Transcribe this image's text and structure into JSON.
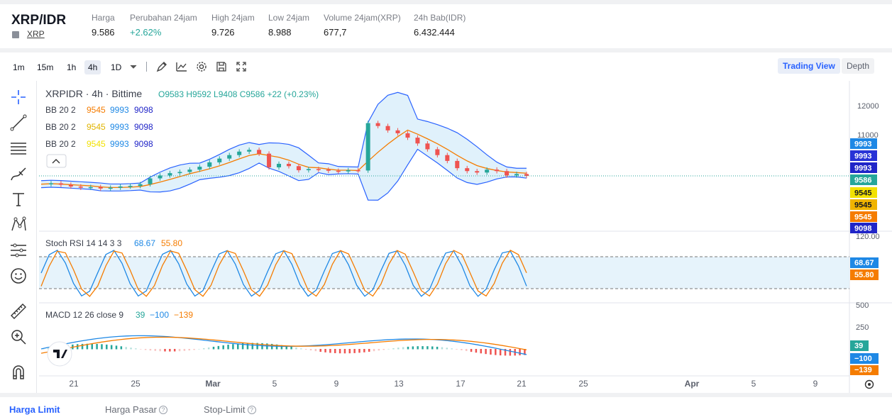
{
  "ticker": {
    "pair": "XRP/IDR",
    "coin_link": "XRP",
    "stats": [
      {
        "label": "Harga",
        "value": "9.586",
        "color": "dark"
      },
      {
        "label": "Perubahan 24jam",
        "value": "+2.62%",
        "color": "green"
      },
      {
        "label": "High 24jam",
        "value": "9.726",
        "color": "dark"
      },
      {
        "label": "Low 24jam",
        "value": "8.988",
        "color": "dark"
      },
      {
        "label": "Volume 24jam(XRP)",
        "value": "677,7",
        "color": "dark"
      },
      {
        "label": "24h Bab(IDR)",
        "value": "6.432.444",
        "color": "dark"
      }
    ]
  },
  "toolbar": {
    "timeframes": [
      "1m",
      "15m",
      "1h",
      "4h",
      "1D"
    ],
    "active_timeframe": "4h",
    "icons": [
      "draw-icon",
      "line-chart-icon",
      "gear-icon",
      "save-icon",
      "fullscreen-icon"
    ],
    "trading_view_label": "Trading View",
    "depth_label": "Depth"
  },
  "legend": {
    "title": "XRPIDR · 4h · Bittime",
    "ohlc": {
      "o_label": "O",
      "o": "9583",
      "h_label": "H",
      "h": "9592",
      "l_label": "L",
      "l": "9408",
      "c_label": "C",
      "c": "9586",
      "change": "+22 (+0.23%)"
    },
    "bb_rows": [
      {
        "label": "BB 20 2",
        "basis": "9545",
        "upper": "9993",
        "lower": "9098",
        "basis_color": "#f57c00"
      },
      {
        "label": "BB 20 2",
        "basis": "9545",
        "upper": "9993",
        "lower": "9098",
        "basis_color": "#e0b400"
      },
      {
        "label": "BB 20 2",
        "basis": "9545",
        "upper": "9993",
        "lower": "9098",
        "basis_color": "#f2e100"
      }
    ],
    "stoch_label": "Stoch RSI 14 14 3 3",
    "stoch_k": "68.67",
    "stoch_d": "55.80",
    "macd_label": "MACD 12 26 close 9",
    "macd_hist": "39",
    "macd_line": "−100",
    "macd_signal": "−139"
  },
  "price_axis": {
    "ticks": [
      "12000",
      "11000"
    ],
    "badges": [
      {
        "text": "9993",
        "bg": "#1e88e5"
      },
      {
        "text": "9993",
        "bg": "#2732d6"
      },
      {
        "text": "9993",
        "bg": "#2025c8"
      },
      {
        "text": "9586",
        "bg": "#26a69a"
      },
      {
        "text": "9545",
        "bg": "#f2e100",
        "fg": "#131722"
      },
      {
        "text": "9545",
        "bg": "#f0b400",
        "fg": "#131722"
      },
      {
        "text": "9545",
        "bg": "#f57c00"
      },
      {
        "text": "9098",
        "bg": "#2025c8"
      }
    ]
  },
  "stoch_axis": {
    "top": "120.00",
    "k_badge": "68.67",
    "d_badge": "55.80"
  },
  "macd_axis": {
    "ticks": [
      "500",
      "250"
    ],
    "hist_badge": "39",
    "macd_badge": "−100",
    "signal_badge": "−139"
  },
  "time_axis": [
    "21",
    "25",
    "Mar",
    "5",
    "9",
    "13",
    "17",
    "21",
    "25",
    "Apr",
    "5",
    "9"
  ],
  "colors": {
    "up": "#26a69a",
    "down": "#ef5350",
    "bb_fill": "#dbeefa",
    "bb_band": "#2962ff",
    "basis": "#f57c00",
    "stoch_k": "#1e88e5",
    "stoch_d": "#f57c00",
    "accent": "#2962ff"
  },
  "chart_data": {
    "type": "line",
    "close_series": [
      9300,
      9330,
      9280,
      9220,
      9180,
      9200,
      9150,
      9180,
      9220,
      9240,
      9300,
      9500,
      9600,
      9680,
      9720,
      9800,
      9900,
      10050,
      10180,
      10300,
      10420,
      10480,
      10350,
      9880,
      10000,
      9920,
      9780,
      9820,
      9800,
      9760,
      9740,
      9780,
      9770,
      11400,
      11300,
      11150,
      11050,
      10900,
      10700,
      10500,
      10300,
      10100,
      9850,
      9750,
      9700,
      9800,
      9750,
      9600,
      9650,
      9586
    ]
  },
  "bottom_tabs": [
    {
      "label": "Harga Limit",
      "active": true,
      "help": false
    },
    {
      "label": "Harga Pasar",
      "active": false,
      "help": true
    },
    {
      "label": "Stop-Limit",
      "active": false,
      "help": true
    }
  ]
}
